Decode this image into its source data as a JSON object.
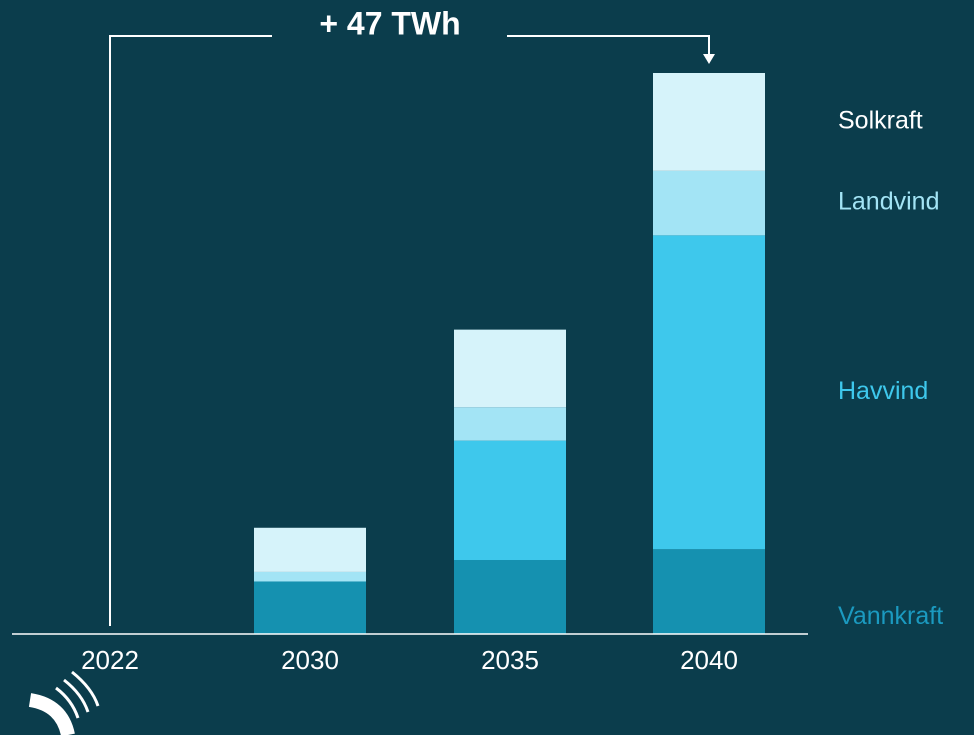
{
  "chart_data": {
    "type": "stacked_bar",
    "annotation": "+ 47 TWh",
    "categories": [
      "2022",
      "2030",
      "2035",
      "2040"
    ],
    "series": [
      {
        "name": "Vannkraft",
        "color": "#1591b0",
        "label_color": "#1b9ac0",
        "values": [
          0,
          4.4,
          6.2,
          7.1
        ]
      },
      {
        "name": "Havvind",
        "color": "#3ec8ec",
        "label_color": "#3ec8ec",
        "values": [
          0,
          0,
          10.0,
          26.3
        ]
      },
      {
        "name": "Landvind",
        "color": "#a3e4f5",
        "label_color": "#a3e4f5",
        "values": [
          0,
          0.8,
          2.8,
          5.4
        ]
      },
      {
        "name": "Solkraft",
        "color": "#d6f3fa",
        "label_color": "#ffffff",
        "values": [
          0,
          3.7,
          6.5,
          8.2
        ]
      }
    ],
    "ylim": [
      0,
      47
    ]
  }
}
